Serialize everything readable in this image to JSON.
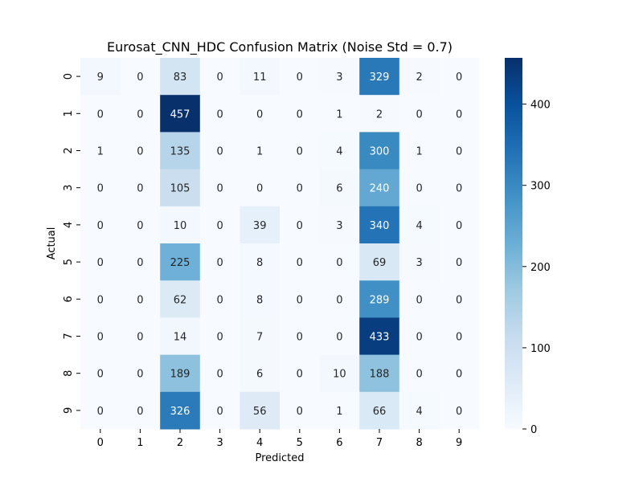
{
  "chart_data": {
    "type": "heatmap",
    "title": "Eurosat_CNN_HDC Confusion Matrix (Noise Std = 0.7)",
    "xlabel": "Predicted",
    "ylabel": "Actual",
    "x_ticks": [
      "0",
      "1",
      "2",
      "3",
      "4",
      "5",
      "6",
      "7",
      "8",
      "9"
    ],
    "y_ticks": [
      "0",
      "1",
      "2",
      "3",
      "4",
      "5",
      "6",
      "7",
      "8",
      "9"
    ],
    "values": [
      [
        9,
        0,
        83,
        0,
        11,
        0,
        3,
        329,
        2,
        0
      ],
      [
        0,
        0,
        457,
        0,
        0,
        0,
        1,
        2,
        0,
        0
      ],
      [
        1,
        0,
        135,
        0,
        1,
        0,
        4,
        300,
        1,
        0
      ],
      [
        0,
        0,
        105,
        0,
        0,
        0,
        6,
        240,
        0,
        0
      ],
      [
        0,
        0,
        10,
        0,
        39,
        0,
        3,
        340,
        4,
        0
      ],
      [
        0,
        0,
        225,
        0,
        8,
        0,
        0,
        69,
        3,
        0
      ],
      [
        0,
        0,
        62,
        0,
        8,
        0,
        0,
        289,
        0,
        0
      ],
      [
        0,
        0,
        14,
        0,
        7,
        0,
        0,
        433,
        0,
        0
      ],
      [
        0,
        0,
        189,
        0,
        6,
        0,
        10,
        188,
        0,
        0
      ],
      [
        0,
        0,
        326,
        0,
        56,
        0,
        1,
        66,
        4,
        0
      ]
    ],
    "colormap": "Blues",
    "vmin": 0,
    "vmax": 457,
    "colorbar_ticks": [
      0,
      100,
      200,
      300,
      400
    ],
    "colors": {
      "low": "#f7fbff",
      "high": "#08306b",
      "text_dark": "#262626",
      "text_light": "#ffffff"
    }
  }
}
